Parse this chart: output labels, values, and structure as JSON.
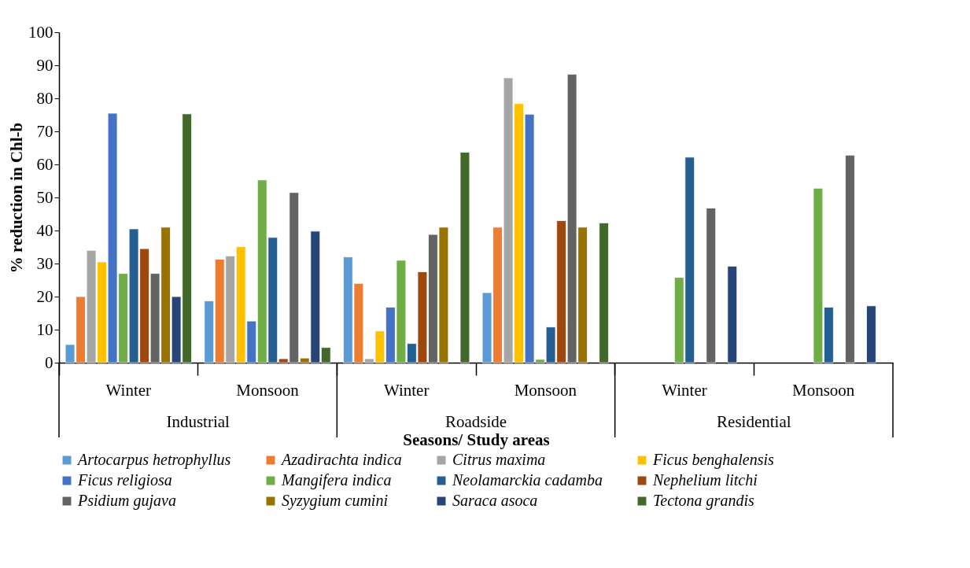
{
  "chart_data": {
    "type": "bar",
    "ylabel": "% reduction in Chl-b",
    "xlabel": "Seasons/ Study areas",
    "categories": [
      "Winter",
      "Monsoon",
      "Winter",
      "Monsoon",
      "Winter",
      "Monsoon"
    ],
    "annotations": [
      "Industrial",
      "Roadside",
      "Residential"
    ],
    "ylim": [
      0,
      100
    ],
    "yticks": [
      0,
      10,
      20,
      30,
      40,
      50,
      60,
      70,
      80,
      90,
      100
    ],
    "grid": false,
    "legend": "bottom",
    "series": [
      {
        "name": "Artocarpus hetrophyllus",
        "color": "#5b9bd5",
        "values": [
          5.5,
          18.7,
          32,
          21.2,
          null,
          null
        ]
      },
      {
        "name": "Azadirachta indica",
        "color": "#ed7d31",
        "values": [
          20,
          31.3,
          24,
          41,
          null,
          null
        ]
      },
      {
        "name": "Citrus maxima",
        "color": "#a5a5a5",
        "values": [
          34,
          32.3,
          1.2,
          86.2,
          null,
          null
        ]
      },
      {
        "name": "Ficus benghalensis",
        "color": "#ffc000",
        "values": [
          30.5,
          35.1,
          9.6,
          78.4,
          null,
          null
        ]
      },
      {
        "name": "Ficus religiosa",
        "color": "#4472c4",
        "values": [
          75.5,
          12.6,
          16.8,
          75.2,
          null,
          null
        ]
      },
      {
        "name": "Mangifera indica",
        "color": "#70ad47",
        "values": [
          27,
          55.3,
          31,
          1,
          25.8,
          52.8
        ]
      },
      {
        "name": "Neolamarckia cadamba",
        "color": "#255e91",
        "values": [
          40.5,
          37.9,
          5.8,
          10.8,
          62.2,
          16.8
        ]
      },
      {
        "name": "Nephelium litchi",
        "color": "#9e480e",
        "values": [
          34.5,
          1.2,
          27.5,
          43,
          null,
          null
        ]
      },
      {
        "name": "Psidium gujava",
        "color": "#636363",
        "values": [
          27,
          51.5,
          38.8,
          87.3,
          46.8,
          62.8
        ]
      },
      {
        "name": "Syzygium cumini",
        "color": "#997300",
        "values": [
          41,
          1.4,
          41,
          41,
          null,
          null
        ]
      },
      {
        "name": "Saraca asoca",
        "color": "#264478",
        "values": [
          20,
          39.8,
          null,
          null,
          29.2,
          17.2
        ]
      },
      {
        "name": "Tectona grandis",
        "color": "#43682b",
        "values": [
          75.3,
          4.6,
          63.7,
          42.3,
          null,
          null
        ]
      }
    ]
  }
}
